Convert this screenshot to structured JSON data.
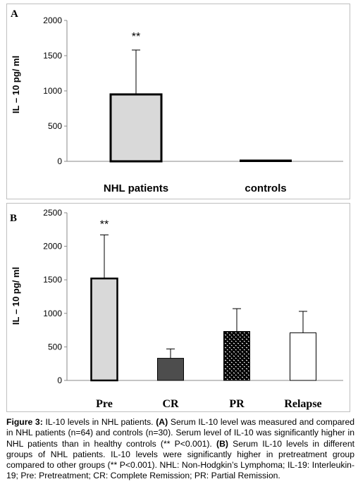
{
  "chart_data": [
    {
      "panel": "A",
      "type": "bar",
      "categories": [
        "NHL patients",
        "controls"
      ],
      "values": [
        950,
        5
      ],
      "error_plus": [
        630,
        0
      ],
      "annotations": [
        "**",
        ""
      ],
      "ylabel": "IL – 10  pg/ ml",
      "ylim": [
        0,
        2000
      ],
      "yticks": [
        "0",
        "500",
        "1000",
        "1500",
        "2000"
      ],
      "grid": false,
      "fills": [
        "#d9d9d9",
        "#ffffff"
      ]
    },
    {
      "panel": "B",
      "type": "bar",
      "categories": [
        "Pre",
        "CR",
        "PR",
        "Relapse"
      ],
      "values": [
        1520,
        330,
        730,
        710
      ],
      "error_plus": [
        650,
        140,
        340,
        320
      ],
      "annotations": [
        "**",
        "",
        "",
        ""
      ],
      "ylabel": "IL – 10  pg/ ml",
      "ylim": [
        0,
        2500
      ],
      "yticks": [
        "0",
        "500",
        "1000",
        "1500",
        "2000",
        "2500"
      ],
      "grid": false,
      "fills": [
        "#d9d9d9",
        "#4d4d4d",
        "pattern-dots",
        "#ffffff"
      ]
    }
  ],
  "caption": {
    "label": "Figure 3:",
    "intro": " IL-10 levels in NHL patients. ",
    "a_label": "(A)",
    "a_text": " Serum IL-10 level was measured and compared in NHL patients (n=64) and controls (n=30). Serum level of IL-10 was significantly higher in NHL patients than in healthy controls (** P<0.001). ",
    "b_label": "(B)",
    "b_text": " Serum IL-10 levels in different groups of NHL patients. IL-10 levels were significantly higher in pretreatment group compared to other groups (** P<0.001). NHL: Non-Hodgkin’s Lymphoma; IL-19: Interleukin-19; Pre: Pretreatment; CR: Complete Remission; PR: Partial Remission."
  }
}
